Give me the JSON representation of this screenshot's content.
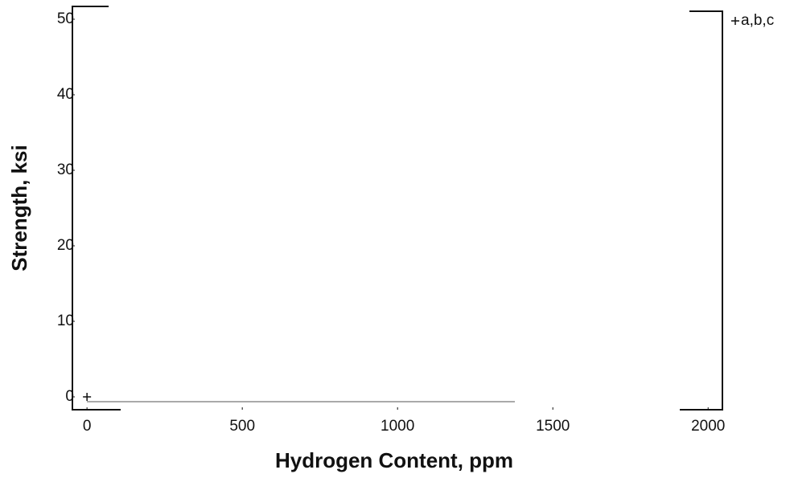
{
  "chart_data": {
    "type": "scatter",
    "xlabel": "Hydrogen Content, ppm",
    "ylabel": "Strength, ksi",
    "xlim": [
      -47,
      2046
    ],
    "ylim": [
      -1.7,
      51.7
    ],
    "xticks": [
      0,
      500,
      1000,
      1500,
      2000
    ],
    "yticks": [
      0,
      10,
      20,
      30,
      40,
      50
    ],
    "series": [
      {
        "name": "a,b,c",
        "color": "#111111",
        "x": [
          0
        ],
        "values": [
          0
        ]
      }
    ],
    "legend": "upper right"
  }
}
